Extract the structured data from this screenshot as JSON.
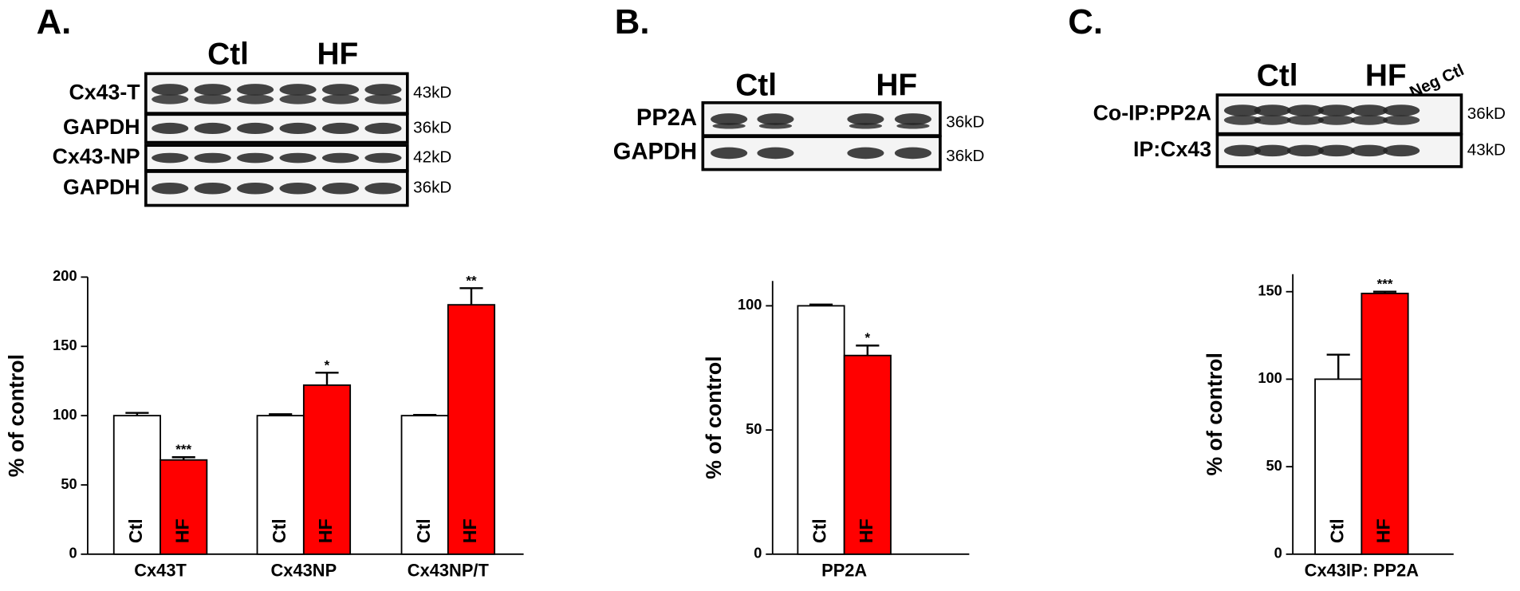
{
  "blots": [
    {
      "panel": "A.",
      "groups": [
        "Ctl",
        "HF"
      ],
      "rows": [
        {
          "label": "Cx43-T",
          "size": "43kD"
        },
        {
          "label": "GAPDH",
          "size": "36kD"
        },
        {
          "label": "Cx43-NP",
          "size": "42kD"
        },
        {
          "label": "GAPDH",
          "size": "36kD"
        }
      ]
    },
    {
      "panel": "B.",
      "groups": [
        "Ctl",
        "HF"
      ],
      "rows": [
        {
          "label": "PP2A",
          "size": "36kD"
        },
        {
          "label": "GAPDH",
          "size": "36kD"
        }
      ]
    },
    {
      "panel": "C.",
      "groups": [
        "Ctl",
        "HF",
        "Neg Ctl"
      ],
      "rows": [
        {
          "label": "Co-IP:PP2A",
          "size": "36kD"
        },
        {
          "label": "IP:Cx43",
          "size": "43kD"
        }
      ]
    }
  ],
  "chart_data": [
    {
      "type": "bar",
      "y_label": "% of control",
      "categories": [
        "Cx43T",
        "Cx43NP",
        "Cx43NP/T"
      ],
      "series": [
        {
          "name": "Ctl",
          "color": "#ffffff",
          "values": [
            100,
            100,
            100
          ],
          "errors": [
            2,
            1,
            0.5
          ]
        },
        {
          "name": "HF",
          "color": "#ff0000",
          "values": [
            68,
            122,
            180
          ],
          "errors": [
            2,
            9,
            12
          ],
          "significance": [
            "***",
            "*",
            "**"
          ]
        }
      ],
      "ylim": [
        0,
        200
      ],
      "yticks": [
        0,
        50,
        100,
        150,
        200
      ]
    },
    {
      "type": "bar",
      "y_label": "% of control",
      "categories": [
        "PP2A"
      ],
      "series": [
        {
          "name": "Ctl",
          "color": "#ffffff",
          "values": [
            100
          ],
          "errors": [
            0.5
          ]
        },
        {
          "name": "HF",
          "color": "#ff0000",
          "values": [
            80
          ],
          "errors": [
            4
          ],
          "significance": [
            "*"
          ]
        }
      ],
      "ylim": [
        0,
        110
      ],
      "yticks": [
        0,
        50,
        100
      ]
    },
    {
      "type": "bar",
      "y_label": "% of control",
      "categories": [
        "Cx43IP: PP2A"
      ],
      "series": [
        {
          "name": "Ctl",
          "color": "#ffffff",
          "values": [
            100
          ],
          "errors": [
            14
          ]
        },
        {
          "name": "HF",
          "color": "#ff0000",
          "values": [
            149
          ],
          "errors": [
            1
          ],
          "significance": [
            "***"
          ]
        }
      ],
      "ylim": [
        0,
        160
      ],
      "yticks": [
        0,
        50,
        100,
        150
      ]
    }
  ]
}
